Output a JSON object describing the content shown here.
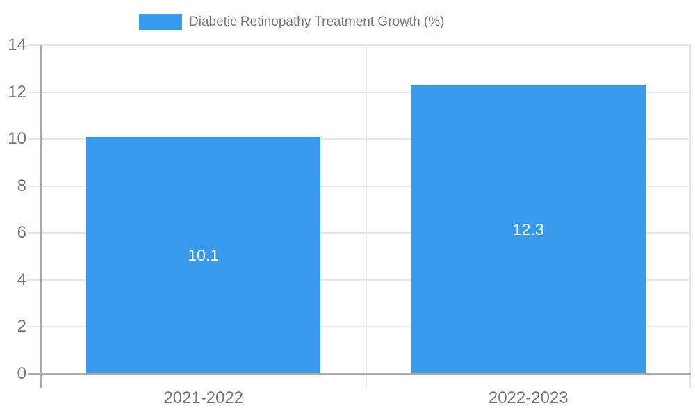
{
  "chart_data": {
    "type": "bar",
    "legend": "Diabetic Retinopathy Treatment Growth (%)",
    "legend_position": "top-center",
    "categories": [
      "2021-2022",
      "2022-2023"
    ],
    "values": [
      10.1,
      12.3
    ],
    "value_labels": [
      "10.1",
      "12.3"
    ],
    "ylim": [
      0,
      14
    ],
    "yticks": [
      0,
      2,
      4,
      6,
      8,
      10,
      12,
      14
    ],
    "grid": true,
    "bar_label_position": "center",
    "colors": {
      "bar": "#389AED",
      "grid": "#E7E7E7",
      "axis": "#AAAAAA",
      "text": "#757575",
      "bar_label": "#FFFFFF"
    }
  }
}
